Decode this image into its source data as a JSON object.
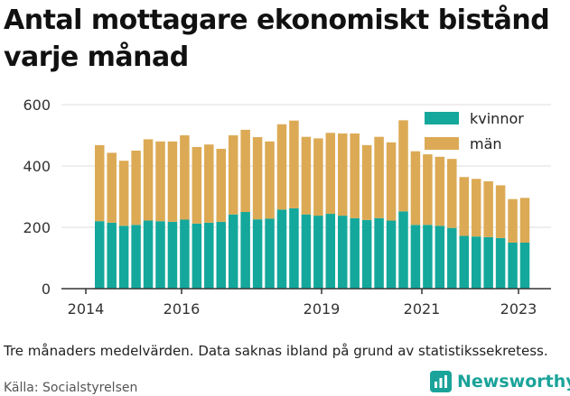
{
  "title": "Antal mottagare ekonomiskt bistånd varje månad",
  "note": "Tre månaders medelvärden. Data saknas ibland på grund av statistikssekretess.",
  "source": "Källa: Socialstyrelsen",
  "logo": {
    "name": "Newsworthy",
    "icon": "newsworthy-bar-icon"
  },
  "colors": {
    "kvinnor": "#14a89c",
    "man": "#dcaa55",
    "grid": "#dddddd",
    "axis": "#333333"
  },
  "chart_data": {
    "type": "bar",
    "stacked": true,
    "ylim": [
      0,
      600
    ],
    "yticks": [
      0,
      200,
      400,
      600
    ],
    "xticks": [
      "2014",
      "2016",
      "2019",
      "2021",
      "2023"
    ],
    "grid": "horizontal",
    "legend_position": "top-right",
    "series": [
      {
        "name": "kvinnor",
        "values": [
          220,
          215,
          205,
          208,
          222,
          220,
          218,
          225,
          212,
          215,
          218,
          242,
          250,
          226,
          228,
          258,
          262,
          242,
          238,
          244,
          238,
          230,
          224,
          230,
          222,
          252,
          208,
          208,
          205,
          198,
          172,
          170,
          168,
          165,
          150,
          150
        ]
      },
      {
        "name": "män",
        "values": [
          248,
          228,
          212,
          242,
          265,
          260,
          262,
          275,
          250,
          255,
          238,
          258,
          268,
          268,
          252,
          278,
          286,
          253,
          252,
          264,
          268,
          276,
          244,
          265,
          255,
          297,
          240,
          230,
          225,
          225,
          192,
          188,
          182,
          172,
          142,
          146
        ]
      }
    ]
  }
}
